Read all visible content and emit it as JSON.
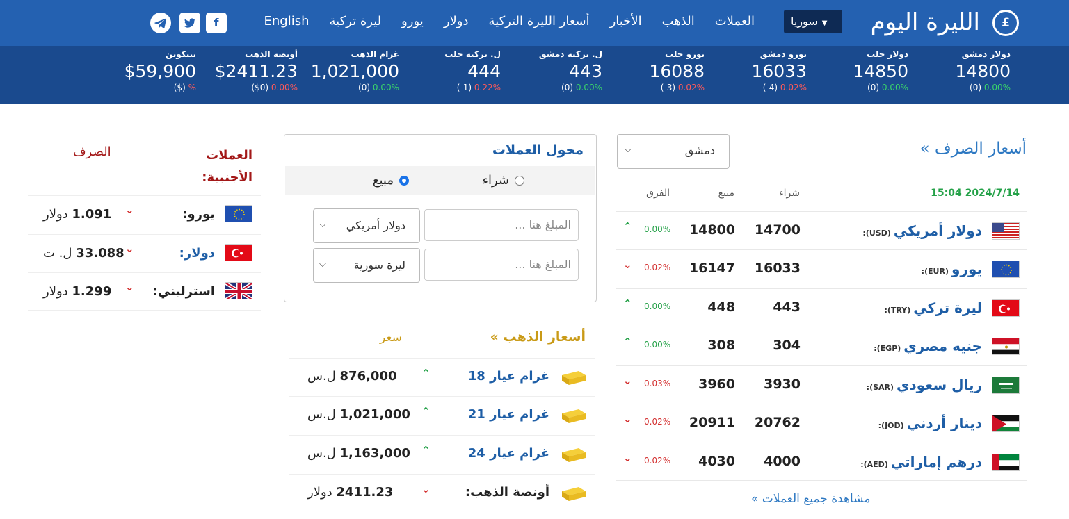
{
  "header": {
    "logo_text": "الليرة اليوم",
    "logo_symbol": "£",
    "country": "سوريا",
    "nav": [
      "العملات",
      "الذهب",
      "الأخبار",
      "أسعار الليرة التركية",
      "دولار",
      "يورو",
      "ليرة تركية",
      "English"
    ],
    "social": [
      "facebook-icon",
      "twitter-icon",
      "telegram-icon"
    ]
  },
  "ticker": [
    {
      "label": "دولار دمشق",
      "value": "14800",
      "diff": "(0)",
      "change": "0.00%",
      "dir": "up"
    },
    {
      "label": "دولار حلب",
      "value": "14850",
      "diff": "(0)",
      "change": "0.00%",
      "dir": "up"
    },
    {
      "label": "يورو دمشق",
      "value": "16033",
      "diff": "(-4)",
      "change": "0.02%",
      "dir": "down"
    },
    {
      "label": "يورو حلب",
      "value": "16088",
      "diff": "(-3)",
      "change": "0.02%",
      "dir": "down"
    },
    {
      "label": "ل. تركية دمشق",
      "value": "443",
      "diff": "(0)",
      "change": "0.00%",
      "dir": "up"
    },
    {
      "label": "ل. تركية حلب",
      "value": "444",
      "diff": "(-1)",
      "change": "0.22%",
      "dir": "down"
    },
    {
      "label": "غرام الذهب",
      "value": "1,021,000",
      "diff": "(0)",
      "change": "0.00%",
      "dir": "up"
    },
    {
      "label": "أونصة الذهب",
      "value": "$2411.23",
      "diff": "($0)",
      "change": "0.00%",
      "dir": "down"
    },
    {
      "label": "بيتكوين",
      "value": "$59,900",
      "diff": "($)",
      "change": "%",
      "dir": "down"
    }
  ],
  "exchange": {
    "title": "أسعار الصرف »",
    "city": "دمشق",
    "date": "15:04 2024/7/14",
    "col_buy": "شراء",
    "col_sell": "مبيع",
    "col_diff": "الفرق",
    "rows": [
      {
        "name": "دولار أمريكي",
        "code": "(USD):",
        "buy": "14700",
        "sell": "14800",
        "change": "0.00%",
        "dir": "up",
        "flag": "us-flag-icon"
      },
      {
        "name": "يورو",
        "code": "(EUR):",
        "buy": "16033",
        "sell": "16147",
        "change": "0.02%",
        "dir": "down",
        "flag": "eu-flag-icon"
      },
      {
        "name": "ليرة تركي",
        "code": "(TRY):",
        "buy": "443",
        "sell": "448",
        "change": "0.00%",
        "dir": "up",
        "flag": "tr-flag-icon"
      },
      {
        "name": "جنيه مصري",
        "code": "(EGP):",
        "buy": "304",
        "sell": "308",
        "change": "0.00%",
        "dir": "up",
        "flag": "eg-flag-icon"
      },
      {
        "name": "ريال سعودي",
        "code": "(SAR):",
        "buy": "3930",
        "sell": "3960",
        "change": "0.03%",
        "dir": "down",
        "flag": "sa-flag-icon"
      },
      {
        "name": "دينار أردني",
        "code": "(JOD):",
        "buy": "20762",
        "sell": "20911",
        "change": "0.02%",
        "dir": "down",
        "flag": "jo-flag-icon"
      },
      {
        "name": "درهم إماراتي",
        "code": "(AED):",
        "buy": "4000",
        "sell": "4030",
        "change": "0.02%",
        "dir": "down",
        "flag": "ae-flag-icon"
      }
    ],
    "view_all": "مشاهدة جميع العملات »"
  },
  "converter": {
    "title": "محول العملات",
    "radio_buy": "شراء",
    "radio_sell": "مبيع",
    "selected": "sell",
    "amount_placeholder": "المبلغ هنا ...",
    "from_currency": "دولار أمريكي",
    "to_currency": "ليرة سورية"
  },
  "gold": {
    "title": "أسعار الذهب »",
    "price_header": "سعر",
    "rows": [
      {
        "name": "غرام عيار 18",
        "value": "876,000",
        "unit": "ل.س",
        "dir": "up"
      },
      {
        "name": "غرام عيار 21",
        "value": "1,021,000",
        "unit": "ل.س",
        "dir": "up"
      },
      {
        "name": "غرام عيار 24",
        "value": "1,163,000",
        "unit": "ل.س",
        "dir": "up"
      },
      {
        "name": "أونصة الذهب:",
        "value": "2411.23",
        "unit": "دولار",
        "dir": "down"
      }
    ]
  },
  "foreign": {
    "title": "العملات الأجنبية:",
    "col": "الصرف",
    "rows": [
      {
        "name": "يورو:",
        "value": "1.091",
        "unit": "دولار",
        "flag": "eu-flag-icon"
      },
      {
        "name": "دولار:",
        "value": "33.088",
        "unit": "ل. ت",
        "flag": "tr-flag-icon"
      },
      {
        "name": "استرليني:",
        "value": "1.299",
        "unit": "دولار",
        "flag": "gb-flag-icon"
      }
    ]
  },
  "colors": {
    "header_bg": "#2461b1",
    "ticker_bg": "#1a4a8e",
    "up": "#24a148",
    "down": "#d32f2f",
    "gold": "#c99a16",
    "link": "#2d78c2"
  }
}
